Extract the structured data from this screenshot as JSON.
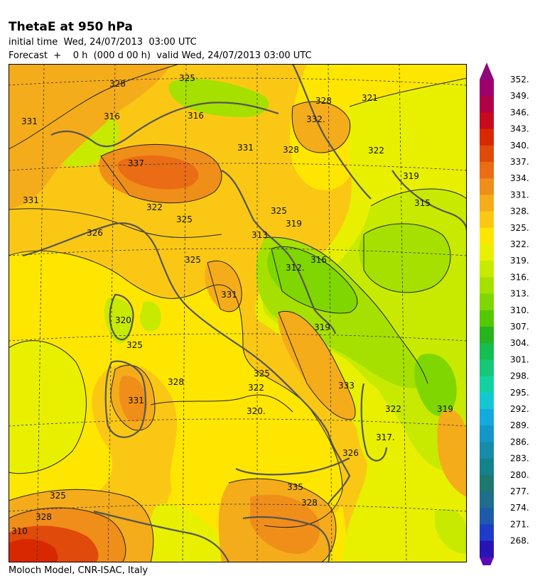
{
  "header": {
    "title": "ThetaE at 950 hPa",
    "initial_time": "initial time  Wed, 24/07/2013  03:00 UTC",
    "forecast": "Forecast  +    0 h  (000 d 00 h)  valid Wed, 24/07/2013 03:00 UTC"
  },
  "footer": {
    "credit": "Moloch Model, CNR-ISAC, Italy"
  },
  "colorbar": {
    "levels": [
      352,
      349,
      346,
      343,
      340,
      337,
      334,
      331,
      328,
      325,
      322,
      319,
      316,
      313,
      310,
      307,
      304,
      301,
      298,
      295,
      292,
      289,
      286,
      283,
      280,
      277,
      274,
      271,
      268
    ],
    "colors": [
      "#a0006e",
      "#b20046",
      "#c80a1e",
      "#d82800",
      "#e04a0a",
      "#ea6c14",
      "#f08e1a",
      "#f5ac1a",
      "#fac814",
      "#ffe600",
      "#e8f000",
      "#c8ea00",
      "#a6e000",
      "#80d600",
      "#54c800",
      "#28b41e",
      "#14be50",
      "#14c878",
      "#14d2a0",
      "#14c8d2",
      "#14aadc",
      "#1496c8",
      "#148caa",
      "#14828c",
      "#1e786e",
      "#1e6e8c",
      "#1e5aaa",
      "#1e3cc8",
      "#2814b4"
    ],
    "top_arrow_color": "#8c0a7a",
    "bottom_arrow_color": "#5a0ab4"
  },
  "map": {
    "contour_labels": [
      "325",
      "328",
      "331",
      "316",
      "337",
      "322",
      "325",
      "328",
      "331",
      "325",
      "328",
      "332.",
      "321",
      "322",
      "319",
      "315",
      "313",
      "319",
      "316",
      "312.",
      "331",
      "325",
      "322",
      "320.",
      "325",
      "333",
      "322",
      "317.",
      "319",
      "326",
      "331",
      "325",
      "328",
      "335",
      "328",
      "310",
      "325",
      "320",
      "328",
      "331",
      "316",
      "326",
      "319"
    ]
  }
}
